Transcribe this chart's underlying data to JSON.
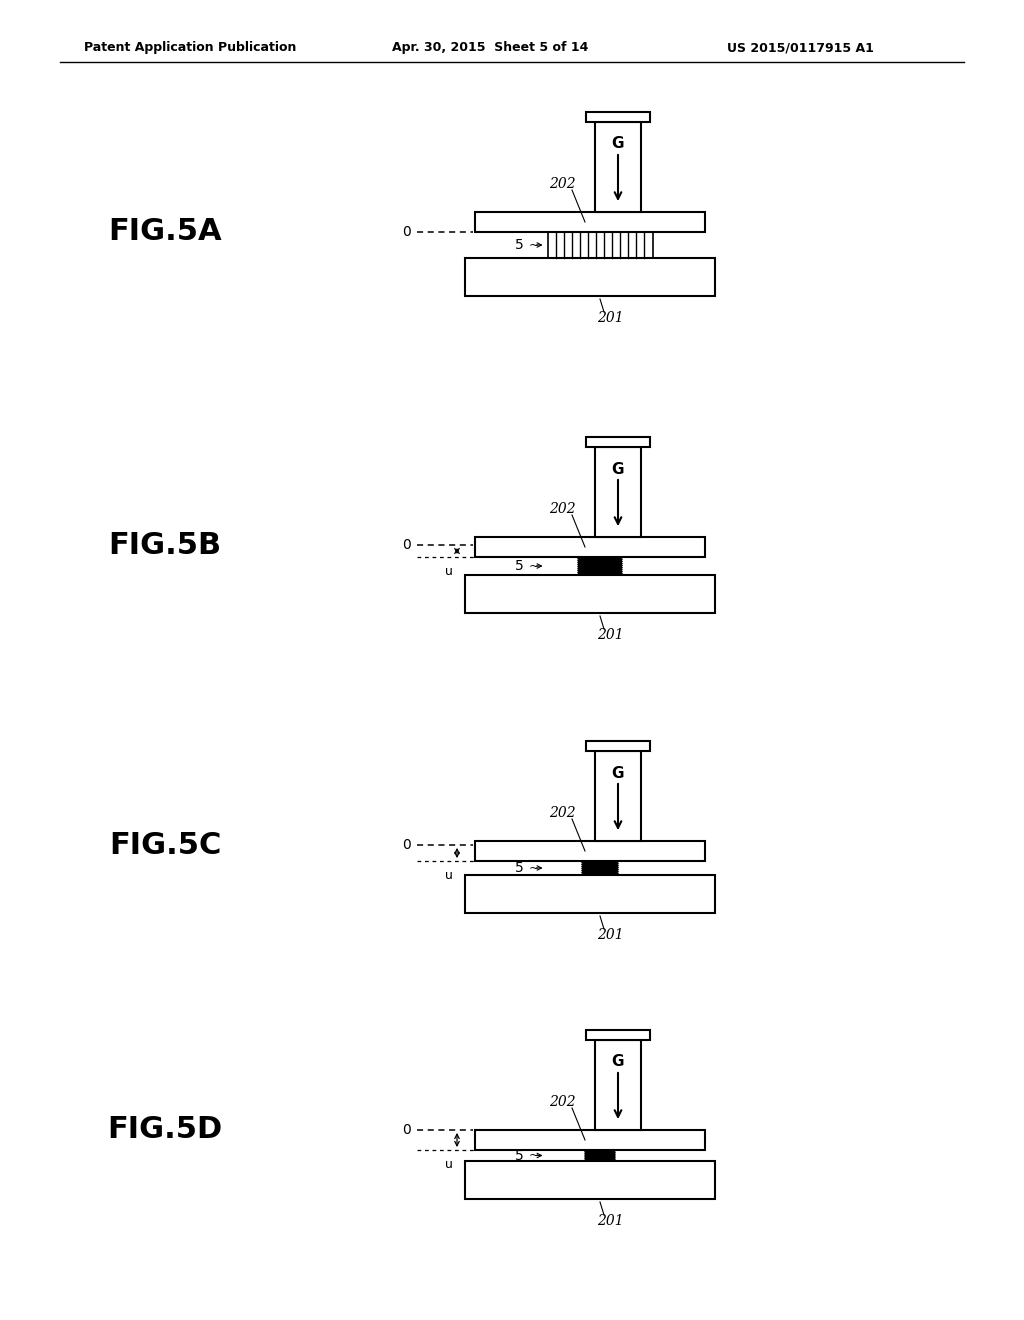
{
  "header_left": "Patent Application Publication",
  "header_mid": "Apr. 30, 2015  Sheet 5 of 14",
  "header_right": "US 2015/0117915 A1",
  "bg_color": "#ffffff",
  "line_color": "#000000",
  "fig_labels": [
    "FIG.5A",
    "FIG.5B",
    "FIG.5C",
    "FIG.5D"
  ],
  "tags": [
    "A",
    "B",
    "C",
    "D"
  ]
}
